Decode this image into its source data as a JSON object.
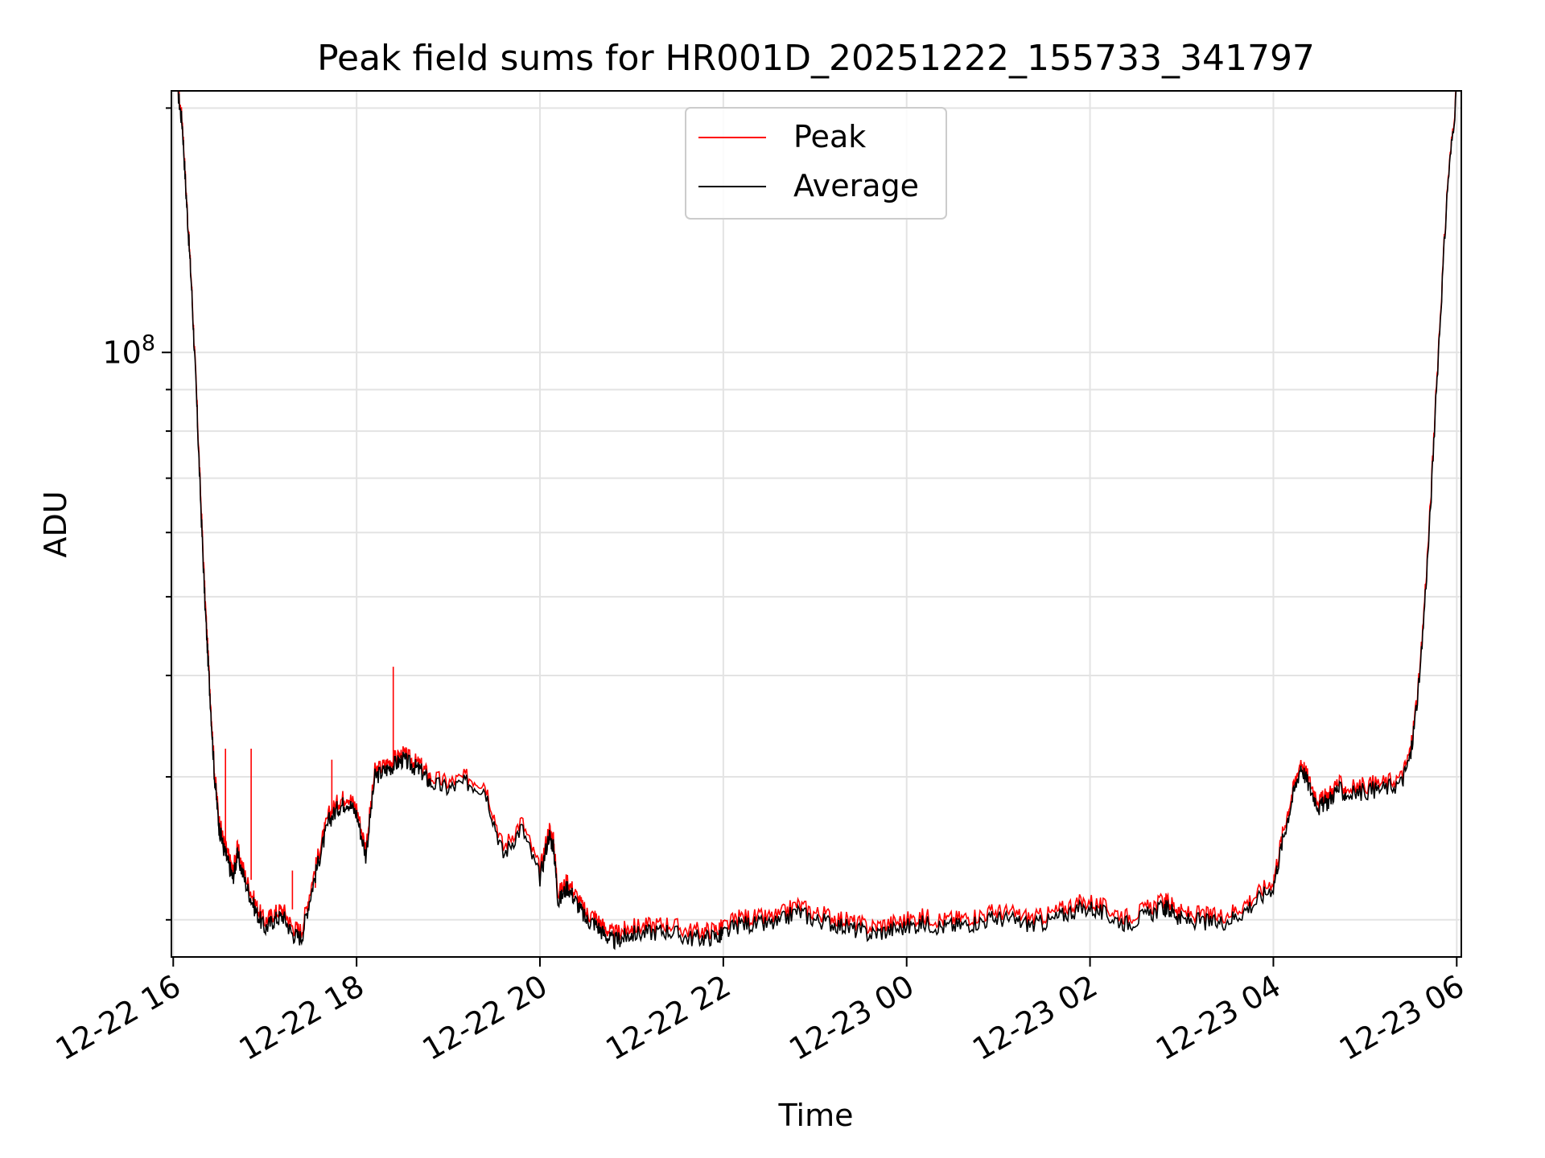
{
  "chart_data": {
    "type": "line",
    "title": "Peak field sums for HR001D_20251222_155733_341797",
    "xlabel": "Time",
    "ylabel": "ADU",
    "y_scale": "log",
    "ylim": [
      18000000,
      210000000
    ],
    "x_unit": "hours since 12-22 16:00",
    "xlim": [
      -0.02,
      14.05
    ],
    "y_ticks": [
      {
        "value": 100000000,
        "label": "10",
        "exp": "8"
      }
    ],
    "x_ticks": [
      {
        "value": 0,
        "label": "12-22 16"
      },
      {
        "value": 2,
        "label": "12-22 18"
      },
      {
        "value": 4,
        "label": "12-22 20"
      },
      {
        "value": 6,
        "label": "12-22 22"
      },
      {
        "value": 8,
        "label": "12-23 00"
      },
      {
        "value": 10,
        "label": "12-23 02"
      },
      {
        "value": 12,
        "label": "12-23 04"
      },
      {
        "value": 14,
        "label": "12-23 06"
      }
    ],
    "legend": {
      "location": "top-center",
      "entries": [
        {
          "label": "Peak",
          "color": "#ff0000"
        },
        {
          "label": "Average",
          "color": "#000000"
        }
      ]
    },
    "grid": true,
    "series": [
      {
        "name": "Average",
        "color": "#000000",
        "x": [
          0.05,
          0.1,
          0.15,
          0.2,
          0.25,
          0.3,
          0.35,
          0.4,
          0.45,
          0.5,
          0.55,
          0.6,
          0.65,
          0.7,
          0.8,
          0.9,
          1.0,
          1.1,
          1.2,
          1.3,
          1.4,
          1.5,
          1.6,
          1.7,
          1.8,
          1.9,
          2.0,
          2.1,
          2.2,
          2.3,
          2.4,
          2.5,
          2.6,
          2.7,
          2.8,
          3.0,
          3.2,
          3.4,
          3.6,
          3.8,
          4.0,
          4.1,
          4.15,
          4.2,
          4.3,
          4.4,
          4.5,
          4.6,
          4.7,
          4.8,
          4.9,
          5.0,
          5.2,
          5.4,
          5.6,
          5.8,
          5.95,
          6.0,
          6.2,
          6.4,
          6.6,
          6.8,
          7.0,
          7.2,
          7.4,
          7.6,
          7.8,
          8.0,
          8.2,
          8.4,
          8.6,
          8.8,
          9.0,
          9.2,
          9.4,
          9.6,
          9.8,
          10.0,
          10.2,
          10.4,
          10.6,
          10.8,
          10.9,
          11.0,
          11.2,
          11.4,
          11.6,
          11.8,
          12.0,
          12.1,
          12.2,
          12.3,
          12.4,
          12.5,
          12.6,
          12.7,
          12.8,
          13.0,
          13.2,
          13.4,
          13.5,
          13.6,
          13.7,
          13.8,
          13.9,
          14.0
        ],
        "y": [
          210000000,
          190000000,
          150000000,
          120000000,
          90000000,
          65000000,
          48000000,
          38000000,
          30000000,
          26000000,
          24500000,
          23500000,
          22500000,
          24000000,
          22000000,
          20500000,
          19500000,
          20000000,
          20200000,
          19200000,
          19000000,
          21500000,
          24000000,
          26500000,
          27500000,
          28000000,
          27000000,
          24000000,
          30000000,
          30500000,
          31000000,
          31500000,
          31000000,
          30500000,
          29500000,
          29000000,
          29500000,
          29000000,
          24000000,
          26000000,
          22500000,
          25500000,
          24500000,
          21000000,
          22000000,
          21000000,
          20000000,
          19800000,
          19200000,
          18800000,
          19000000,
          19200000,
          19300000,
          19400000,
          19000000,
          19000000,
          19100000,
          19200000,
          19800000,
          19700000,
          19800000,
          20500000,
          20000000,
          19800000,
          19500000,
          19200000,
          19400000,
          19600000,
          19800000,
          19600000,
          19700000,
          19900000,
          20100000,
          19900000,
          19700000,
          20000000,
          20500000,
          20700000,
          20200000,
          19800000,
          20200000,
          20700000,
          20500000,
          20000000,
          19900000,
          19800000,
          20200000,
          21000000,
          22000000,
          25000000,
          28000000,
          31000000,
          29000000,
          27500000,
          28000000,
          29000000,
          28500000,
          28800000,
          29000000,
          29500000,
          32000000,
          40000000,
          60000000,
          100000000,
          160000000,
          210000000
        ]
      },
      {
        "name": "Peak",
        "color": "#ff0000",
        "x": [
          0.05,
          0.1,
          0.15,
          0.2,
          0.25,
          0.3,
          0.35,
          0.4,
          0.45,
          0.5,
          0.55,
          0.6,
          0.65,
          0.7,
          0.8,
          0.9,
          1.0,
          1.1,
          1.2,
          1.3,
          1.4,
          1.5,
          1.6,
          1.7,
          1.8,
          1.9,
          2.0,
          2.1,
          2.2,
          2.3,
          2.4,
          2.5,
          2.6,
          2.7,
          2.8,
          3.0,
          3.2,
          3.4,
          3.6,
          3.8,
          4.0,
          4.1,
          4.15,
          4.2,
          4.3,
          4.4,
          4.5,
          4.6,
          4.7,
          4.8,
          4.9,
          5.0,
          5.2,
          5.4,
          5.6,
          5.8,
          5.95,
          6.0,
          6.2,
          6.4,
          6.6,
          6.8,
          7.0,
          7.2,
          7.4,
          7.6,
          7.8,
          8.0,
          8.2,
          8.4,
          8.6,
          8.8,
          9.0,
          9.2,
          9.4,
          9.6,
          9.8,
          10.0,
          10.2,
          10.4,
          10.6,
          10.8,
          10.9,
          11.0,
          11.2,
          11.4,
          11.6,
          11.8,
          12.0,
          12.1,
          12.2,
          12.3,
          12.4,
          12.5,
          12.6,
          12.7,
          12.8,
          13.0,
          13.2,
          13.4,
          13.5,
          13.6,
          13.7,
          13.8,
          13.9,
          14.0
        ],
        "y": [
          212000000,
          192000000,
          151000000,
          121000000,
          91000000,
          66000000,
          49000000,
          38500000,
          30500000,
          26500000,
          25000000,
          24000000,
          23000000,
          24500000,
          22400000,
          20900000,
          19900000,
          20400000,
          20600000,
          19600000,
          19400000,
          21900000,
          24500000,
          27000000,
          28000000,
          28500000,
          27500000,
          24500000,
          30500000,
          31000000,
          31500000,
          32000000,
          31500000,
          31000000,
          30000000,
          29500000,
          30000000,
          29500000,
          24500000,
          26500000,
          23000000,
          26000000,
          25000000,
          21500000,
          22400000,
          21400000,
          20400000,
          20200000,
          19600000,
          19200000,
          19400000,
          19600000,
          19700000,
          19800000,
          19400000,
          19400000,
          19500000,
          19600000,
          20200000,
          20100000,
          20200000,
          20900000,
          20400000,
          20200000,
          19900000,
          19600000,
          19800000,
          20000000,
          20200000,
          20000000,
          20100000,
          20300000,
          20500000,
          20300000,
          20100000,
          20400000,
          20900000,
          21100000,
          20600000,
          20200000,
          20600000,
          21100000,
          20900000,
          20400000,
          20300000,
          20200000,
          20600000,
          21400000,
          22400000,
          25500000,
          28500000,
          31500000,
          29500000,
          28000000,
          28500000,
          29500000,
          29000000,
          29300000,
          29500000,
          30000000,
          32500000,
          40500000,
          61000000,
          101000000,
          161000000,
          212000000
        ],
        "spikes": [
          {
            "x": 0.57,
            "y": 32500000
          },
          {
            "x": 0.85,
            "y": 32500000
          },
          {
            "x": 1.3,
            "y": 23000000
          },
          {
            "x": 1.55,
            "y": 22500000
          },
          {
            "x": 1.73,
            "y": 31500000
          },
          {
            "x": 2.4,
            "y": 41000000
          }
        ]
      }
    ]
  }
}
